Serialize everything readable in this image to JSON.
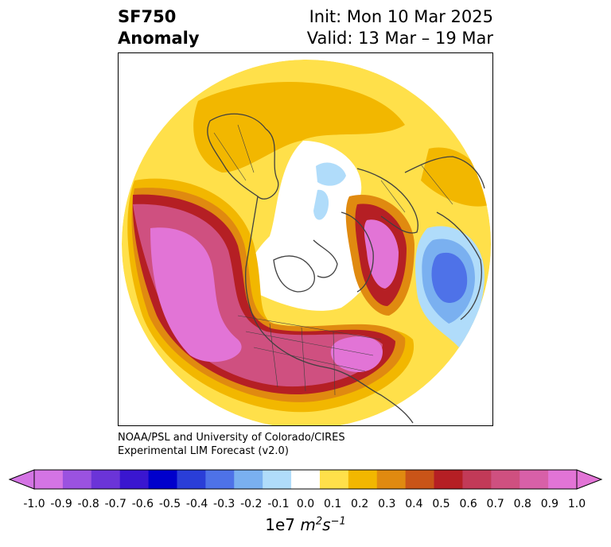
{
  "title": {
    "line1_left": "SF750",
    "line2_left": "Anomaly",
    "line1_right": "Init: Mon 10 Mar 2025",
    "line2_right": "Valid: 13 Mar – 19 Mar"
  },
  "credit": {
    "line1": "NOAA/PSL and University of Colorado/CIRES",
    "line2": "Experimental LIM Forecast (v2.0)"
  },
  "colorbar": {
    "label_prefix": "1e7 ",
    "label_unit": "m",
    "label_exp1": "2",
    "label_unit2": "s",
    "label_exp2": "−1",
    "ticks": [
      "-1.0",
      "-0.9",
      "-0.8",
      "-0.7",
      "-0.6",
      "-0.5",
      "-0.4",
      "-0.3",
      "-0.2",
      "-0.1",
      "0.0",
      "0.1",
      "0.2",
      "0.3",
      "0.4",
      "0.5",
      "0.6",
      "0.7",
      "0.8",
      "0.9",
      "1.0"
    ],
    "colors": [
      "#d474e4",
      "#9b52e0",
      "#6b34d8",
      "#3a16d0",
      "#0000cc",
      "#2a3ed8",
      "#4e72e8",
      "#7ab0f0",
      "#b0dcfa",
      "#ffffff",
      "#ffe04a",
      "#f2b700",
      "#e08a10",
      "#c95418",
      "#b51f24",
      "#c23a58",
      "#cf5080",
      "#d860a8",
      "#e274d6"
    ]
  },
  "map": {
    "projection": "north-polar-stereographic",
    "field_colors": {
      "strong_positive": "#e274d6",
      "positive_5": "#cf5080",
      "positive_4": "#b51f24",
      "positive_3": "#c95418",
      "positive_2": "#e08a10",
      "positive_1": "#f2b700",
      "weak_positive": "#ffe04a",
      "weak_negative": "#b0dcfa",
      "negative_2": "#7ab0f0",
      "negative_3": "#4e72e8"
    }
  }
}
